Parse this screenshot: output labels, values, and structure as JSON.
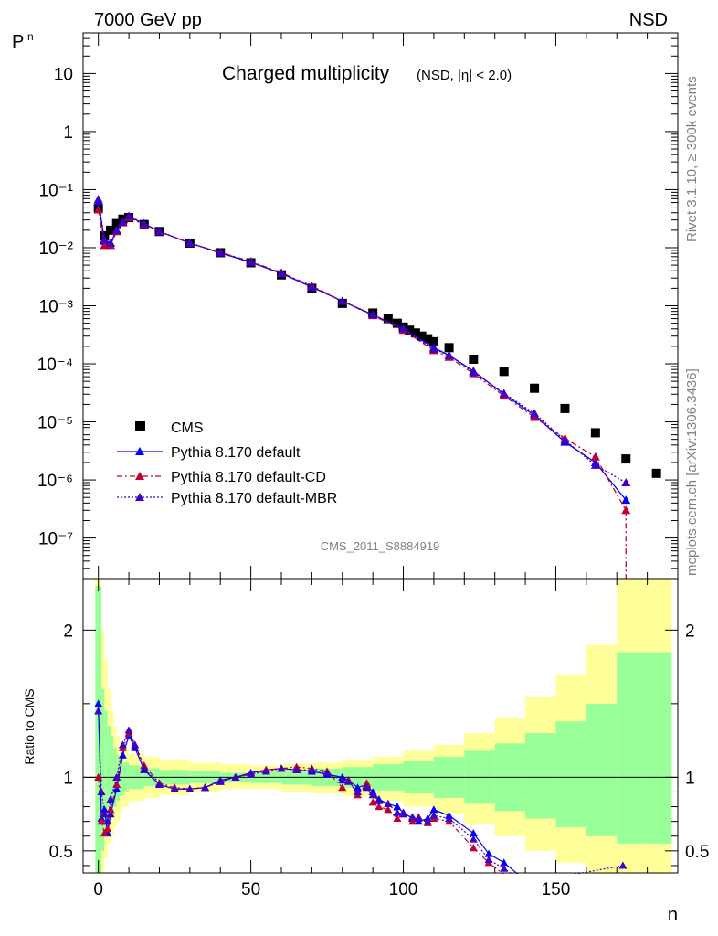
{
  "header": {
    "left": "7000 GeV pp",
    "right": "NSD"
  },
  "side_labels": {
    "rivet": "Rivet 3.1.10, ≥ 300k events",
    "mcplots": "mcplots.cern.ch [arXiv:1306.3436]"
  },
  "plot_title": {
    "main": "Charged multiplicity",
    "sub": "(NSD, |η| < 2.0)"
  },
  "analysis_id": "CMS_2011_S8884919",
  "chart_data": [
    {
      "type": "scatter",
      "panel": "main",
      "ylabel": "Pn",
      "xlabel": "n",
      "xlim": [
        -5,
        190
      ],
      "ylim": [
        2e-08,
        50
      ],
      "yscale": "log",
      "y_ticks": [
        "10⁻⁷",
        "10⁻⁶",
        "10⁻⁵",
        "10⁻⁴",
        "10⁻³",
        "10⁻²",
        "10⁻¹",
        "1",
        "10"
      ],
      "legend": [
        {
          "name": "CMS",
          "color": "#000000",
          "marker": "square"
        },
        {
          "name": "Pythia 8.170 default",
          "color": "#0000ff",
          "marker": "triangle",
          "dash": "solid"
        },
        {
          "name": "Pythia 8.170 default-CD",
          "color": "#c00030",
          "marker": "triangle",
          "dash": "dashdot"
        },
        {
          "name": "Pythia 8.170 default-MBR",
          "color": "#3c00c8",
          "marker": "triangle",
          "dash": "dotted"
        }
      ],
      "series": [
        {
          "name": "CMS",
          "x": [
            0,
            2,
            4,
            6,
            8,
            10,
            15,
            20,
            30,
            40,
            50,
            60,
            70,
            80,
            90,
            95,
            98,
            100,
            102,
            104,
            106,
            108,
            110,
            115,
            123,
            133,
            143,
            153,
            163,
            173,
            183
          ],
          "y": [
            0.048,
            0.016,
            0.02,
            0.026,
            0.031,
            0.033,
            0.025,
            0.019,
            0.012,
            0.0082,
            0.0055,
            0.0034,
            0.002,
            0.0011,
            0.00075,
            0.0006,
            0.0005,
            0.00043,
            0.00038,
            0.00034,
            0.0003,
            0.00027,
            0.00024,
            0.00019,
            0.00012,
            7.4e-05,
            3.8e-05,
            1.7e-05,
            6.5e-06,
            2.3e-06,
            1.3e-06
          ]
        },
        {
          "name": "Pythia 8.170 default",
          "x": [
            0,
            2,
            4,
            6,
            8,
            10,
            15,
            20,
            30,
            40,
            50,
            60,
            70,
            80,
            90,
            100,
            110,
            115,
            123,
            133,
            143,
            153,
            163,
            173
          ],
          "y": [
            0.062,
            0.013,
            0.012,
            0.02,
            0.028,
            0.034,
            0.026,
            0.019,
            0.012,
            0.0081,
            0.0056,
            0.0036,
            0.0021,
            0.0012,
            0.0007,
            0.0004,
            0.00019,
            0.00014,
            7.5e-05,
            3e-05,
            1.3e-05,
            4.5e-06,
            2e-06,
            4.5e-07
          ]
        },
        {
          "name": "Pythia 8.170 default-CD",
          "x": [
            0,
            2,
            4,
            6,
            8,
            10,
            15,
            20,
            30,
            40,
            50,
            60,
            70,
            80,
            90,
            100,
            110,
            115,
            123,
            133,
            143,
            153,
            163,
            173
          ],
          "y": [
            0.045,
            0.011,
            0.011,
            0.019,
            0.027,
            0.033,
            0.025,
            0.019,
            0.012,
            0.0083,
            0.0058,
            0.0037,
            0.0022,
            0.0012,
            0.00068,
            0.00038,
            0.00017,
            0.00013,
            6.8e-05,
            2.8e-05,
            1.2e-05,
            5.2e-06,
            2.5e-06,
            3e-07
          ]
        },
        {
          "name": "Pythia 8.170 default-MBR",
          "x": [
            0,
            2,
            4,
            6,
            8,
            10,
            15,
            20,
            30,
            40,
            50,
            60,
            70,
            80,
            90,
            100,
            110,
            115,
            123,
            133,
            143,
            153,
            163,
            173
          ],
          "y": [
            0.068,
            0.014,
            0.012,
            0.02,
            0.028,
            0.035,
            0.026,
            0.019,
            0.012,
            0.0082,
            0.0057,
            0.0036,
            0.0021,
            0.0012,
            0.0007,
            0.00041,
            0.00018,
            0.00014,
            7.2e-05,
            3.1e-05,
            1.4e-05,
            4.8e-06,
            1.8e-06,
            9e-07
          ]
        }
      ]
    },
    {
      "type": "line",
      "panel": "ratio",
      "ylabel": "Ratio to CMS",
      "xlabel": "n",
      "xlim": [
        -5,
        190
      ],
      "ylim": [
        0.35,
        2.35
      ],
      "x_ticks": [
        0,
        50,
        100,
        150
      ],
      "y_ticks": [
        0.5,
        1,
        2
      ],
      "bands": {
        "x_edges": [
          -1,
          1,
          2,
          3,
          4,
          5,
          6,
          7,
          8,
          10,
          15,
          20,
          30,
          40,
          50,
          60,
          70,
          80,
          90,
          100,
          110,
          120,
          130,
          140,
          150,
          160,
          170,
          180,
          190
        ],
        "yellow_low": [
          0.35,
          0.35,
          0.45,
          0.55,
          0.6,
          0.66,
          0.7,
          0.75,
          0.8,
          0.84,
          0.86,
          0.88,
          0.9,
          0.92,
          0.92,
          0.9,
          0.89,
          0.87,
          0.84,
          0.8,
          0.75,
          0.68,
          0.6,
          0.5,
          0.42,
          0.35,
          0.35,
          0.35
        ],
        "yellow_high": [
          2.35,
          2.0,
          1.8,
          1.6,
          1.45,
          1.35,
          1.28,
          1.24,
          1.2,
          1.16,
          1.14,
          1.12,
          1.1,
          1.09,
          1.08,
          1.09,
          1.1,
          1.12,
          1.14,
          1.18,
          1.22,
          1.3,
          1.4,
          1.55,
          1.7,
          1.9,
          2.35,
          2.35
        ],
        "green_low": [
          0.35,
          0.5,
          0.6,
          0.68,
          0.74,
          0.8,
          0.84,
          0.87,
          0.9,
          0.92,
          0.94,
          0.95,
          0.96,
          0.97,
          0.96,
          0.95,
          0.94,
          0.93,
          0.91,
          0.89,
          0.86,
          0.82,
          0.77,
          0.72,
          0.66,
          0.6,
          0.55,
          0.55
        ],
        "green_high": [
          2.3,
          1.6,
          1.45,
          1.35,
          1.28,
          1.2,
          1.15,
          1.12,
          1.1,
          1.08,
          1.06,
          1.05,
          1.04,
          1.03,
          1.04,
          1.05,
          1.06,
          1.07,
          1.09,
          1.11,
          1.14,
          1.18,
          1.23,
          1.3,
          1.38,
          1.5,
          1.85,
          1.85
        ]
      },
      "series": [
        {
          "name": "Pythia 8.170 default",
          "x": [
            0,
            1,
            2,
            3,
            4,
            6,
            8,
            10,
            12,
            15,
            20,
            25,
            30,
            35,
            40,
            45,
            50,
            55,
            60,
            65,
            70,
            75,
            80,
            82,
            85,
            88,
            90,
            92,
            95,
            98,
            100,
            103,
            105,
            108,
            110,
            115,
            123,
            128,
            133,
            140
          ],
          "y": [
            1.5,
            0.72,
            0.78,
            0.62,
            0.75,
            0.92,
            1.15,
            1.28,
            1.2,
            1.05,
            0.95,
            0.92,
            0.92,
            0.93,
            0.98,
            1.0,
            1.03,
            1.05,
            1.06,
            1.05,
            1.04,
            1.02,
            1.0,
            0.98,
            0.93,
            0.95,
            0.9,
            0.85,
            0.82,
            0.8,
            0.76,
            0.72,
            0.7,
            0.72,
            0.78,
            0.74,
            0.62,
            0.48,
            0.42,
            0.3
          ]
        },
        {
          "name": "Pythia 8.170 default-CD",
          "x": [
            0,
            1,
            2,
            3,
            4,
            6,
            8,
            10,
            12,
            15,
            20,
            25,
            30,
            35,
            40,
            45,
            50,
            55,
            60,
            65,
            70,
            75,
            80,
            82,
            85,
            88,
            90,
            92,
            95,
            98,
            100,
            103,
            105,
            108,
            110,
            115,
            123,
            128,
            133,
            140
          ],
          "y": [
            1.0,
            0.7,
            0.62,
            0.65,
            0.78,
            0.95,
            1.2,
            1.3,
            1.22,
            1.08,
            0.96,
            0.93,
            0.92,
            0.93,
            0.97,
            1.0,
            1.02,
            1.05,
            1.06,
            1.07,
            1.06,
            1.04,
            0.93,
            0.98,
            0.88,
            0.96,
            0.83,
            0.8,
            0.78,
            0.72,
            0.75,
            0.7,
            0.73,
            0.69,
            0.72,
            0.7,
            0.52,
            0.42,
            0.34,
            0.25
          ]
        },
        {
          "name": "Pythia 8.170 default-MBR",
          "x": [
            0,
            1,
            2,
            3,
            4,
            6,
            8,
            10,
            12,
            15,
            20,
            25,
            30,
            35,
            40,
            45,
            50,
            55,
            60,
            65,
            70,
            75,
            80,
            82,
            85,
            88,
            90,
            92,
            95,
            98,
            100,
            103,
            105,
            108,
            110,
            115,
            123,
            128,
            133,
            140,
            172
          ],
          "y": [
            1.45,
            0.9,
            0.75,
            0.7,
            0.85,
            1.0,
            1.22,
            1.32,
            1.22,
            1.06,
            0.95,
            0.92,
            0.92,
            0.93,
            0.97,
            1.0,
            1.02,
            1.04,
            1.06,
            1.05,
            1.05,
            1.03,
            0.98,
            0.97,
            0.9,
            0.93,
            0.88,
            0.84,
            0.82,
            0.76,
            0.75,
            0.73,
            0.72,
            0.7,
            0.74,
            0.72,
            0.58,
            0.44,
            0.38,
            0.28,
            0.4
          ]
        }
      ]
    }
  ]
}
